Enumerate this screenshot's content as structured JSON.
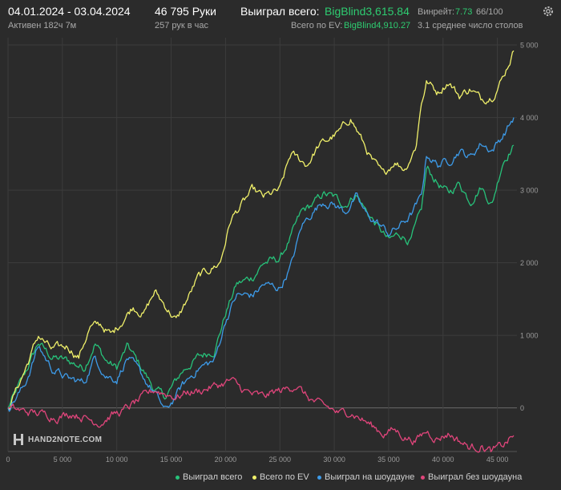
{
  "header": {
    "date_range": "04.01.2024 - 03.04.2024",
    "active": "Активен 182ч 7м",
    "hands": "46 795 Руки",
    "hands_per_hour": "257 рук в час",
    "won_total_label": "Выиграл всего:",
    "won_total_value": "BigBlind3,615.84",
    "ev_total_label": "Всего по EV:",
    "ev_total_value": "BigBlind4,910.27",
    "winrate_label": "Винрейт:",
    "winrate_value": "7.73",
    "winrate_extra": "66/100",
    "tables": "3.1 среднее число столов"
  },
  "logo": {
    "text": "HAND2NOTE.COM"
  },
  "colors": {
    "background": "#2b2b2b",
    "grid": "#3c3c3c",
    "won_total": "#27c27a",
    "ev_total": "#f0f06a",
    "showdown": "#3d9be9",
    "no_showdown": "#e0457b",
    "accent_green": "#2ecc71"
  },
  "chart_data": {
    "type": "line",
    "x_ticks": [
      "0",
      "5 000",
      "10 000",
      "15 000",
      "20 000",
      "25 000",
      "30 000",
      "35 000",
      "40 000",
      "45 000"
    ],
    "y_ticks": [
      "0",
      "1 000",
      "2 000",
      "3 000",
      "4 000",
      "5 000"
    ],
    "xlim": [
      0,
      46795
    ],
    "ylim": [
      -600,
      5100
    ],
    "series": [
      {
        "name": "Выиграл всего",
        "color": "#27c27a",
        "points": [
          [
            0,
            0
          ],
          [
            1500,
            450
          ],
          [
            2800,
            900
          ],
          [
            4000,
            700
          ],
          [
            5500,
            650
          ],
          [
            7000,
            550
          ],
          [
            8000,
            900
          ],
          [
            9000,
            650
          ],
          [
            10000,
            550
          ],
          [
            11000,
            850
          ],
          [
            12500,
            500
          ],
          [
            13500,
            250
          ],
          [
            14500,
            150
          ],
          [
            16000,
            500
          ],
          [
            17500,
            700
          ],
          [
            19000,
            800
          ],
          [
            20000,
            1300
          ],
          [
            21000,
            1700
          ],
          [
            22500,
            1800
          ],
          [
            23500,
            2000
          ],
          [
            25000,
            2050
          ],
          [
            26000,
            2350
          ],
          [
            27000,
            2700
          ],
          [
            28000,
            2800
          ],
          [
            29000,
            2950
          ],
          [
            30000,
            2900
          ],
          [
            31000,
            2800
          ],
          [
            32000,
            2950
          ],
          [
            33000,
            2700
          ],
          [
            34000,
            2500
          ],
          [
            35000,
            2300
          ],
          [
            36000,
            2400
          ],
          [
            37000,
            2300
          ],
          [
            38000,
            2700
          ],
          [
            38500,
            3300
          ],
          [
            39500,
            3100
          ],
          [
            40500,
            2950
          ],
          [
            41500,
            3100
          ],
          [
            42500,
            2850
          ],
          [
            43500,
            3050
          ],
          [
            44500,
            2800
          ],
          [
            45500,
            3400
          ],
          [
            46500,
            3620
          ]
        ]
      },
      {
        "name": "Всего по EV",
        "color": "#f0f06a",
        "points": [
          [
            0,
            0
          ],
          [
            1500,
            500
          ],
          [
            2800,
            1000
          ],
          [
            4000,
            800
          ],
          [
            5500,
            850
          ],
          [
            6500,
            700
          ],
          [
            7500,
            1100
          ],
          [
            8500,
            1150
          ],
          [
            9500,
            1000
          ],
          [
            10500,
            1200
          ],
          [
            11500,
            1400
          ],
          [
            12500,
            1300
          ],
          [
            13500,
            1600
          ],
          [
            14500,
            1400
          ],
          [
            15500,
            1200
          ],
          [
            16500,
            1500
          ],
          [
            17500,
            1800
          ],
          [
            18500,
            1900
          ],
          [
            19500,
            2000
          ],
          [
            20500,
            2600
          ],
          [
            21500,
            2800
          ],
          [
            22500,
            3000
          ],
          [
            23500,
            2900
          ],
          [
            25000,
            3000
          ],
          [
            26000,
            3500
          ],
          [
            27500,
            3350
          ],
          [
            28500,
            3600
          ],
          [
            29500,
            3700
          ],
          [
            30500,
            3800
          ],
          [
            31500,
            4000
          ],
          [
            32500,
            3700
          ],
          [
            33500,
            3400
          ],
          [
            34500,
            3200
          ],
          [
            35500,
            3400
          ],
          [
            36500,
            3300
          ],
          [
            37500,
            3600
          ],
          [
            38000,
            4200
          ],
          [
            38500,
            4500
          ],
          [
            39500,
            4350
          ],
          [
            40500,
            4500
          ],
          [
            41500,
            4300
          ],
          [
            42500,
            4400
          ],
          [
            43500,
            4250
          ],
          [
            44500,
            4300
          ],
          [
            45500,
            4550
          ],
          [
            46500,
            4920
          ]
        ]
      },
      {
        "name": "Выиграл на шоудауне",
        "color": "#3d9be9",
        "points": [
          [
            0,
            0
          ],
          [
            1500,
            300
          ],
          [
            2800,
            850
          ],
          [
            4000,
            550
          ],
          [
            5500,
            400
          ],
          [
            7000,
            350
          ],
          [
            8000,
            700
          ],
          [
            9000,
            450
          ],
          [
            10000,
            400
          ],
          [
            11000,
            700
          ],
          [
            12500,
            400
          ],
          [
            13500,
            200
          ],
          [
            14500,
            -50
          ],
          [
            16000,
            300
          ],
          [
            17500,
            550
          ],
          [
            19000,
            650
          ],
          [
            20000,
            1200
          ],
          [
            21000,
            1550
          ],
          [
            22500,
            1550
          ],
          [
            23500,
            1700
          ],
          [
            25000,
            1650
          ],
          [
            26000,
            1950
          ],
          [
            27000,
            2500
          ],
          [
            28000,
            2700
          ],
          [
            29000,
            2850
          ],
          [
            30000,
            2800
          ],
          [
            31000,
            2700
          ],
          [
            32000,
            2900
          ],
          [
            33000,
            2650
          ],
          [
            34000,
            2550
          ],
          [
            35000,
            2400
          ],
          [
            36000,
            2500
          ],
          [
            37000,
            2650
          ],
          [
            38000,
            2900
          ],
          [
            38500,
            3500
          ],
          [
            39500,
            3350
          ],
          [
            40500,
            3400
          ],
          [
            41500,
            3550
          ],
          [
            42500,
            3450
          ],
          [
            43500,
            3650
          ],
          [
            44500,
            3550
          ],
          [
            45500,
            3750
          ],
          [
            46500,
            4000
          ]
        ]
      },
      {
        "name": "Выиграл без шоудауна",
        "color": "#e0457b",
        "points": [
          [
            0,
            0
          ],
          [
            1500,
            -50
          ],
          [
            3000,
            -80
          ],
          [
            4500,
            -120
          ],
          [
            6000,
            -70
          ],
          [
            7500,
            -160
          ],
          [
            8500,
            -200
          ],
          [
            9500,
            -100
          ],
          [
            10500,
            -50
          ],
          [
            11500,
            50
          ],
          [
            12500,
            150
          ],
          [
            13500,
            250
          ],
          [
            14500,
            200
          ],
          [
            15500,
            150
          ],
          [
            16500,
            220
          ],
          [
            17500,
            230
          ],
          [
            18500,
            280
          ],
          [
            19500,
            320
          ],
          [
            20500,
            380
          ],
          [
            21500,
            260
          ],
          [
            22500,
            180
          ],
          [
            23500,
            150
          ],
          [
            24500,
            220
          ],
          [
            25500,
            250
          ],
          [
            26500,
            320
          ],
          [
            27500,
            150
          ],
          [
            28500,
            50
          ],
          [
            29500,
            0
          ],
          [
            30500,
            -80
          ],
          [
            31500,
            -50
          ],
          [
            32500,
            -150
          ],
          [
            33500,
            -250
          ],
          [
            34500,
            -350
          ],
          [
            35500,
            -300
          ],
          [
            36500,
            -400
          ],
          [
            37500,
            -450
          ],
          [
            38500,
            -320
          ],
          [
            39500,
            -420
          ],
          [
            40500,
            -350
          ],
          [
            41500,
            -450
          ],
          [
            42500,
            -550
          ],
          [
            43500,
            -520
          ],
          [
            44500,
            -600
          ],
          [
            45500,
            -520
          ],
          [
            46500,
            -380
          ]
        ]
      }
    ],
    "legend_position": "bottom-right",
    "grid": true
  }
}
